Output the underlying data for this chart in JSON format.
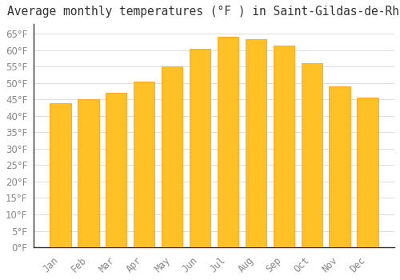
{
  "title": "Average monthly temperatures (°F ) in Saint-Gildas-de-Rhuys",
  "months": [
    "Jan",
    "Feb",
    "Mar",
    "Apr",
    "May",
    "Jun",
    "Jul",
    "Aug",
    "Sep",
    "Oct",
    "Nov",
    "Dec"
  ],
  "values": [
    44,
    45,
    47,
    50.5,
    55,
    60.5,
    64,
    63.5,
    61.5,
    56,
    49,
    45.5
  ],
  "bar_color": "#FFC125",
  "bar_edge_color": "#FFA020",
  "background_color": "#FFFFFF",
  "grid_color": "#DDDDDD",
  "text_color": "#888888",
  "title_color": "#333333",
  "ylim": [
    0,
    68
  ],
  "yticks": [
    0,
    5,
    10,
    15,
    20,
    25,
    30,
    35,
    40,
    45,
    50,
    55,
    60,
    65
  ],
  "title_fontsize": 10.5,
  "tick_fontsize": 8.5
}
